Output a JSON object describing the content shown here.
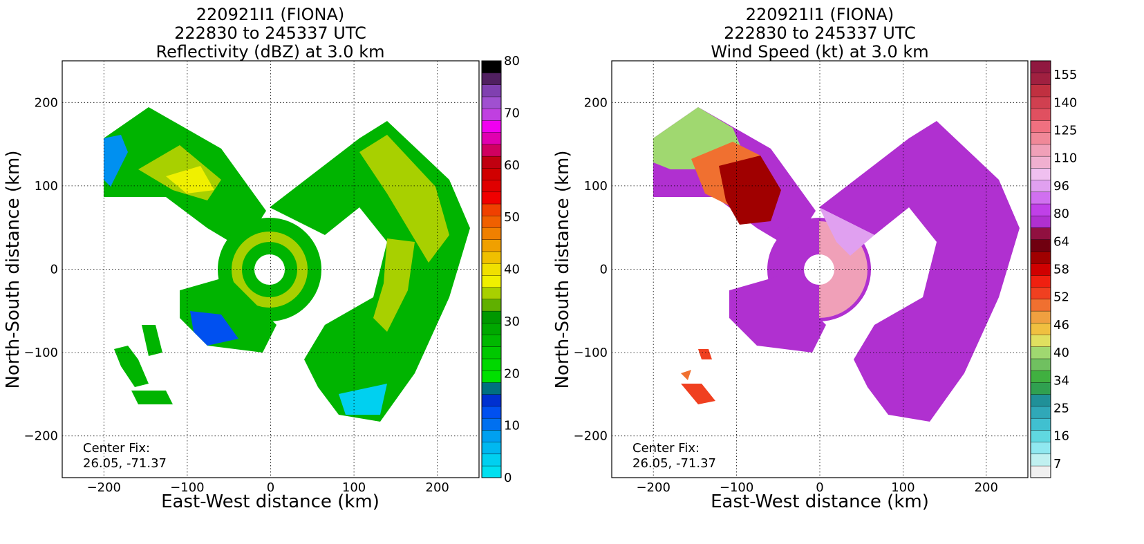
{
  "panels": [
    {
      "title_lines": [
        "220921I1 (FIONA)",
        "222830 to 245337 UTC",
        "Reflectivity (dBZ) at 3.0 km"
      ],
      "xlabel": "East-West distance (km)",
      "ylabel": "North-South distance (km)",
      "center_fix_label": "Center Fix:",
      "center_fix_value": "26.05, -71.37"
    },
    {
      "title_lines": [
        "220921I1 (FIONA)",
        "222830 to 245337 UTC",
        "Wind Speed (kt) at 3.0 km"
      ],
      "xlabel": "East-West distance (km)",
      "ylabel": "North-South distance (km)",
      "center_fix_label": "Center Fix:",
      "center_fix_value": "26.05, -71.37"
    }
  ],
  "chart_data": [
    {
      "type": "heatmap",
      "title": "220921I1 (FIONA) 222830 to 245337 UTC Reflectivity (dBZ) at 3.0 km",
      "xlabel": "East-West distance (km)",
      "ylabel": "North-South distance (km)",
      "xlim": [
        -250,
        250
      ],
      "ylim": [
        -250,
        250
      ],
      "xticks": [
        -200,
        -100,
        0,
        100,
        200
      ],
      "yticks": [
        -200,
        -100,
        0,
        100,
        200
      ],
      "grid": true,
      "center_fix": [
        26.05,
        -71.37
      ],
      "colorbar": {
        "label_ticks": [
          0,
          10,
          20,
          30,
          40,
          50,
          60,
          70,
          80
        ],
        "range": [
          0,
          80
        ],
        "colors": [
          "#00e0f0",
          "#00d0f0",
          "#00b8f0",
          "#00a0f0",
          "#0070f0",
          "#0050f0",
          "#0030d0",
          "#007080",
          "#00e000",
          "#00d800",
          "#00c800",
          "#00b800",
          "#00a800",
          "#009800",
          "#60b000",
          "#a8d000",
          "#f0f000",
          "#f0e000",
          "#f0c000",
          "#f0a000",
          "#f08000",
          "#f06000",
          "#f04000",
          "#f00000",
          "#e00000",
          "#d00000",
          "#c00010",
          "#d00060",
          "#e000b0",
          "#f000f0",
          "#c040e0",
          "#a050d0",
          "#8040b0",
          "#502060",
          "#000000"
        ]
      }
    },
    {
      "type": "heatmap",
      "title": "220921I1 (FIONA) 222830 to 245337 UTC Wind Speed (kt) at 3.0 km",
      "xlabel": "East-West distance (km)",
      "ylabel": "North-South distance (km)",
      "xlim": [
        -250,
        250
      ],
      "ylim": [
        -250,
        250
      ],
      "xticks": [
        -200,
        -100,
        0,
        100,
        200
      ],
      "yticks": [
        -200,
        -100,
        0,
        100,
        200
      ],
      "grid": true,
      "center_fix": [
        26.05,
        -71.37
      ],
      "colorbar": {
        "label_ticks": [
          7,
          16,
          25,
          34,
          40,
          46,
          52,
          58,
          64,
          80,
          96,
          110,
          125,
          140,
          155
        ],
        "colors": [
          "#f0f0f0",
          "#c0f0f0",
          "#90e8f0",
          "#60d8e0",
          "#40c0d0",
          "#30a8b8",
          "#209098",
          "#30a050",
          "#40b040",
          "#70c060",
          "#a0d870",
          "#e0e060",
          "#f0c040",
          "#f0a040",
          "#f07030",
          "#f04020",
          "#f02010",
          "#d00000",
          "#a00000",
          "#700010",
          "#901040",
          "#b030d0",
          "#c040e8",
          "#d070f0",
          "#e0a0f0",
          "#f0c0f0",
          "#f0b0d0",
          "#f0a0b8",
          "#f08898",
          "#f07080",
          "#e05060",
          "#d04050",
          "#c03040",
          "#a02040",
          "#901840"
        ]
      }
    }
  ]
}
